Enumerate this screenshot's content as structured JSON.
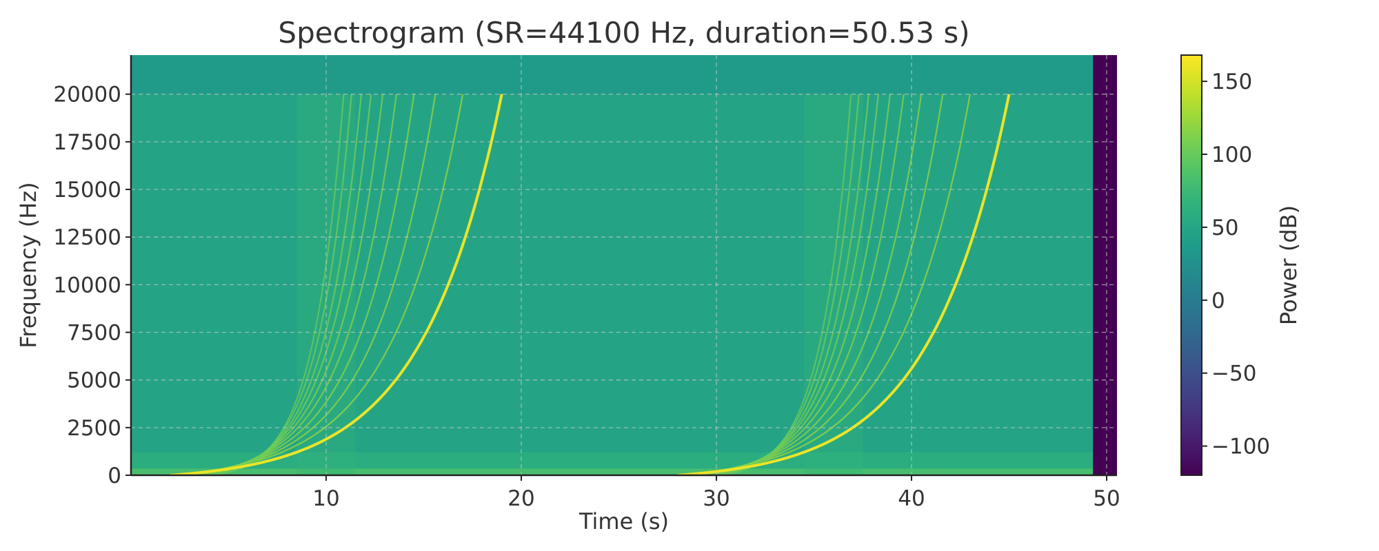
{
  "chart_data": {
    "type": "heatmap",
    "title": "Spectrogram (SR=44100 Hz, duration=50.53 s)",
    "xlabel": "Time (s)",
    "ylabel": "Frequency (Hz)",
    "colorbar_label": "Power (dB)",
    "colormap": "viridis",
    "xlim": [
      0,
      50.53
    ],
    "ylim": [
      0,
      22050
    ],
    "xticks": [
      10,
      20,
      30,
      40,
      50
    ],
    "yticks": [
      0,
      2500,
      5000,
      7500,
      10000,
      12500,
      15000,
      17500,
      20000
    ],
    "clim": [
      -120,
      168
    ],
    "colorbar_ticks": [
      150,
      100,
      50,
      0,
      -50,
      -100
    ],
    "colorbar_tick_labels": [
      "150",
      "100",
      "50",
      "0",
      "−50",
      "−100"
    ],
    "grid": true,
    "background_level_db": 40,
    "silence_region": {
      "t_start": 49.3,
      "t_end": 50.53,
      "level_db": -120
    },
    "band_limit_hz": 20000,
    "sweeps": [
      {
        "t_start": 2,
        "t_end": 19,
        "f_end": 20000,
        "level_db": 160,
        "harmonic_end_times": [
          17.0,
          15.6,
          14.5,
          13.6,
          12.9,
          12.3,
          11.8,
          11.3,
          10.9
        ]
      },
      {
        "t_start": 28,
        "t_end": 45,
        "f_end": 20000,
        "level_db": 160,
        "harmonic_end_times": [
          43.0,
          41.6,
          40.5,
          39.6,
          38.9,
          38.3,
          37.8,
          37.3,
          36.9
        ]
      }
    ]
  }
}
